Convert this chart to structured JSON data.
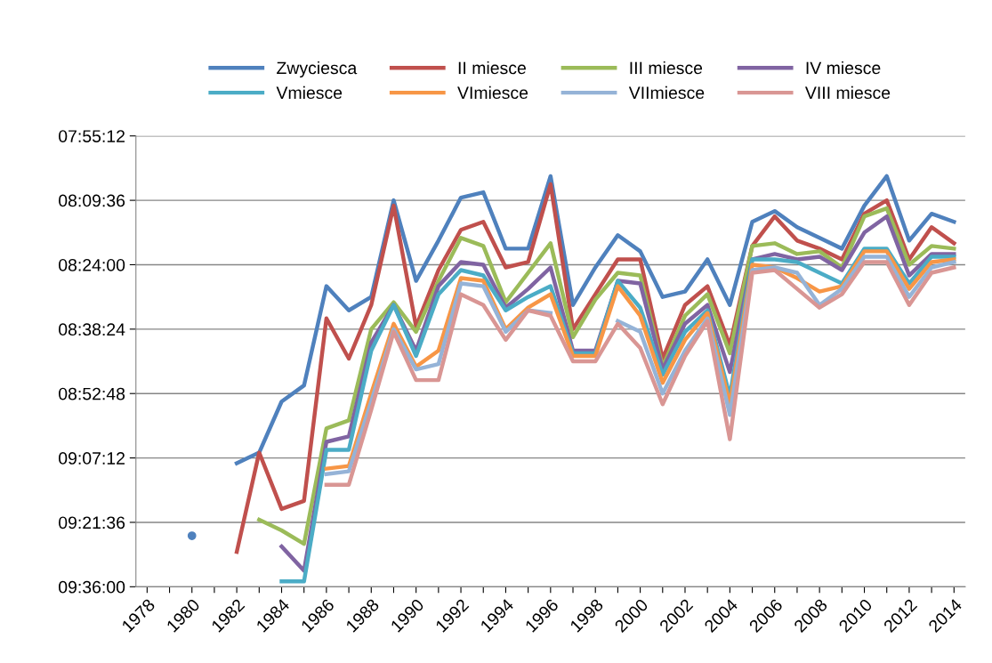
{
  "chart_data": {
    "type": "line",
    "categories": [
      "1978",
      null,
      "1980",
      null,
      "1982",
      null,
      "1984",
      null,
      "1986",
      null,
      "1988",
      null,
      "1990",
      null,
      "1992",
      null,
      "1994",
      null,
      "1996",
      null,
      "1998",
      null,
      "2000",
      null,
      "2002",
      null,
      "2004",
      null,
      "2006",
      null,
      "2008",
      null,
      "2010",
      null,
      "2012",
      null,
      "2014"
    ],
    "ylim": [
      9.6,
      7.92
    ],
    "yticks": [
      {
        "value": 7.92,
        "label": "07:55:12"
      },
      {
        "value": 8.16,
        "label": "08:09:36"
      },
      {
        "value": 8.4,
        "label": "08:24:00"
      },
      {
        "value": 8.64,
        "label": "08:38:24"
      },
      {
        "value": 8.88,
        "label": "08:52:48"
      },
      {
        "value": 9.12,
        "label": "09:07:12"
      },
      {
        "value": 9.36,
        "label": "09:21:36"
      },
      {
        "value": 9.6,
        "label": "09:36:00"
      }
    ],
    "grid": "y",
    "legend": "top",
    "marker": "none",
    "line_style": "solid",
    "series": [
      {
        "name": "Zwyciesca",
        "color": "#4f81bd",
        "values": [
          null,
          null,
          9.41,
          null,
          9.14,
          9.1,
          8.91,
          8.85,
          8.48,
          8.57,
          8.52,
          8.16,
          8.46,
          8.31,
          8.15,
          8.13,
          8.34,
          8.34,
          8.07,
          8.55,
          8.41,
          8.29,
          8.35,
          8.52,
          8.5,
          8.38,
          8.55,
          8.24,
          8.2,
          8.26,
          8.3,
          8.34,
          8.18,
          8.07,
          8.31,
          8.21,
          8.24
        ]
      },
      {
        "name": "II miesce",
        "color": "#c0504d",
        "values": [
          null,
          null,
          null,
          null,
          9.47,
          9.1,
          9.31,
          9.28,
          8.6,
          8.75,
          8.55,
          8.18,
          8.63,
          8.42,
          8.27,
          8.24,
          8.41,
          8.39,
          8.1,
          8.64,
          8.51,
          8.38,
          8.38,
          8.75,
          8.55,
          8.48,
          8.7,
          8.33,
          8.22,
          8.31,
          8.34,
          8.38,
          8.21,
          8.16,
          8.38,
          8.26,
          8.32
        ]
      },
      {
        "name": "III miesce",
        "color": "#9bbb59",
        "values": [
          null,
          null,
          null,
          null,
          null,
          9.35,
          9.39,
          9.44,
          9.01,
          8.98,
          8.64,
          8.54,
          8.65,
          8.46,
          8.3,
          8.33,
          8.54,
          8.43,
          8.32,
          8.67,
          8.53,
          8.43,
          8.44,
          8.78,
          8.59,
          8.51,
          8.73,
          8.33,
          8.32,
          8.36,
          8.35,
          8.41,
          8.22,
          8.19,
          8.4,
          8.33,
          8.34
        ]
      },
      {
        "name": "IV miesce",
        "color": "#8064a2",
        "values": [
          null,
          null,
          null,
          null,
          null,
          null,
          9.45,
          9.54,
          9.06,
          9.04,
          8.69,
          8.55,
          8.72,
          8.48,
          8.39,
          8.4,
          8.56,
          8.49,
          8.41,
          8.72,
          8.72,
          8.46,
          8.47,
          8.79,
          8.62,
          8.55,
          8.8,
          8.38,
          8.36,
          8.38,
          8.37,
          8.42,
          8.28,
          8.22,
          8.44,
          8.36,
          8.36
        ]
      },
      {
        "name": "Vmiesce",
        "color": "#4bacc6",
        "values": [
          null,
          null,
          null,
          null,
          null,
          null,
          9.58,
          9.58,
          9.09,
          9.09,
          8.72,
          8.55,
          8.74,
          8.51,
          8.42,
          8.44,
          8.57,
          8.52,
          8.48,
          8.73,
          8.73,
          8.46,
          8.56,
          8.81,
          8.65,
          8.57,
          8.89,
          8.38,
          8.38,
          8.39,
          8.43,
          8.47,
          8.34,
          8.34,
          8.47,
          8.37,
          8.37
        ]
      },
      {
        "name": "VImiesce",
        "color": "#f79646",
        "values": [
          null,
          null,
          null,
          null,
          null,
          null,
          null,
          null,
          9.16,
          9.15,
          8.88,
          8.62,
          8.78,
          8.72,
          8.45,
          8.46,
          8.64,
          8.56,
          8.51,
          8.74,
          8.74,
          8.48,
          8.59,
          8.84,
          8.68,
          8.58,
          8.92,
          8.4,
          8.41,
          8.45,
          8.5,
          8.48,
          8.35,
          8.35,
          8.49,
          8.39,
          8.38
        ]
      },
      {
        "name": "VIImiesce",
        "color": "#95b3d7",
        "values": [
          null,
          null,
          null,
          null,
          null,
          null,
          null,
          null,
          9.18,
          9.17,
          8.91,
          8.64,
          8.79,
          8.77,
          8.47,
          8.48,
          8.65,
          8.57,
          8.58,
          null,
          null,
          8.61,
          8.65,
          8.88,
          8.72,
          8.6,
          8.96,
          8.42,
          8.41,
          8.43,
          8.55,
          8.49,
          8.37,
          8.37,
          8.52,
          8.41,
          8.39
        ]
      },
      {
        "name": "VIII miesce",
        "color": "#d99694",
        "values": [
          null,
          null,
          null,
          null,
          null,
          null,
          null,
          null,
          9.22,
          9.22,
          8.94,
          8.65,
          8.83,
          8.83,
          8.51,
          8.55,
          8.68,
          8.57,
          8.59,
          8.76,
          8.76,
          8.62,
          8.71,
          8.92,
          8.74,
          8.61,
          9.05,
          8.43,
          8.42,
          8.49,
          8.56,
          8.51,
          8.39,
          8.39,
          8.55,
          8.43,
          8.41
        ]
      }
    ]
  }
}
